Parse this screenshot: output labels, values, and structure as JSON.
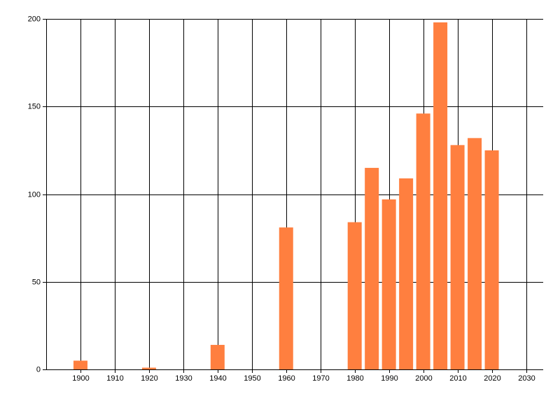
{
  "chart_data": {
    "type": "bar",
    "x": [
      1900,
      1920,
      1940,
      1960,
      1980,
      1985,
      1990,
      1995,
      2000,
      2005,
      2010,
      2015,
      2020
    ],
    "values": [
      5,
      1,
      14,
      81,
      84,
      115,
      97,
      109,
      146,
      198,
      128,
      132,
      125
    ],
    "color": "#ff7f3f",
    "xlim": [
      1890,
      2035
    ],
    "xticks": [
      1900,
      1910,
      1920,
      1930,
      1940,
      1950,
      1960,
      1970,
      1980,
      1990,
      2000,
      2010,
      2020,
      2030
    ],
    "ylim": [
      0,
      200
    ],
    "yticks": [
      0,
      50,
      100,
      150,
      200
    ],
    "grid": true
  }
}
